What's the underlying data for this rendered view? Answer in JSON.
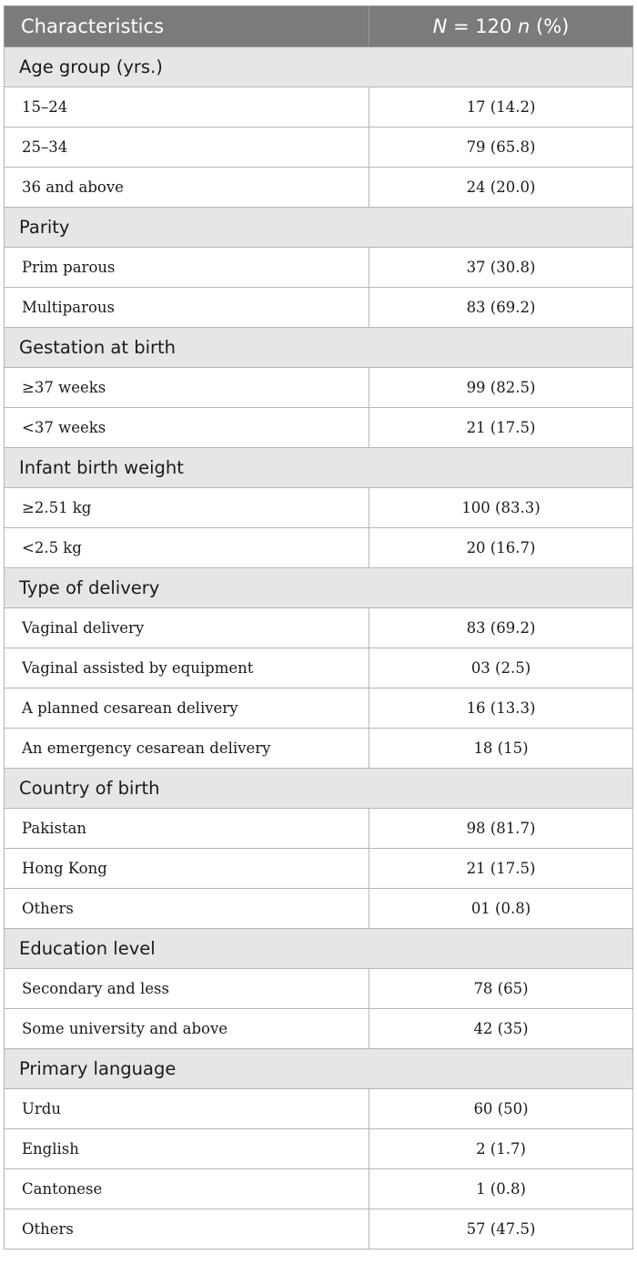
{
  "header": {
    "col1": "Characteristics",
    "col2_n": "N",
    "col2_mid": " = 120 ",
    "col2_n2": "n",
    "col2_pct": " (%)"
  },
  "sections": [
    {
      "title": "Age group (yrs.)",
      "rows": [
        {
          "label": "15–24",
          "value": "17 (14.2)"
        },
        {
          "label": "25–34",
          "value": "79 (65.8)"
        },
        {
          "label": "36 and above",
          "value": "24 (20.0)"
        }
      ]
    },
    {
      "title": "Parity",
      "rows": [
        {
          "label": "Prim parous",
          "value": "37 (30.8)"
        },
        {
          "label": "Multiparous",
          "value": "83 (69.2)"
        }
      ]
    },
    {
      "title": "Gestation at birth",
      "rows": [
        {
          "label": "≥37 weeks",
          "value": "99 (82.5)"
        },
        {
          "label": "<37 weeks",
          "value": "21 (17.5)"
        }
      ]
    },
    {
      "title": "Infant birth weight",
      "rows": [
        {
          "label": "≥2.51 kg",
          "value": "100 (83.3)"
        },
        {
          "label": "<2.5 kg",
          "value": "20 (16.7)"
        }
      ]
    },
    {
      "title": "Type of delivery",
      "rows": [
        {
          "label": "Vaginal delivery",
          "value": "83 (69.2)"
        },
        {
          "label": "Vaginal assisted by equipment",
          "value": "03 (2.5)"
        },
        {
          "label": "A planned cesarean delivery",
          "value": "16 (13.3)"
        },
        {
          "label": "An emergency cesarean delivery",
          "value": "18 (15)"
        }
      ]
    },
    {
      "title": "Country of birth",
      "rows": [
        {
          "label": "Pakistan",
          "value": "98 (81.7)"
        },
        {
          "label": "Hong Kong",
          "value": "21 (17.5)"
        },
        {
          "label": "Others",
          "value": "01 (0.8)"
        }
      ]
    },
    {
      "title": "Education level",
      "rows": [
        {
          "label": "Secondary and less",
          "value": "78 (65)"
        },
        {
          "label": "Some university and above",
          "value": "42 (35)"
        }
      ]
    },
    {
      "title": "Primary language",
      "rows": [
        {
          "label": "Urdu",
          "value": "60 (50)"
        },
        {
          "label": "English",
          "value": "2 (1.7)"
        },
        {
          "label": "Cantonese",
          "value": "1 (0.8)"
        },
        {
          "label": "Others",
          "value": "57 (47.5)"
        }
      ]
    }
  ]
}
